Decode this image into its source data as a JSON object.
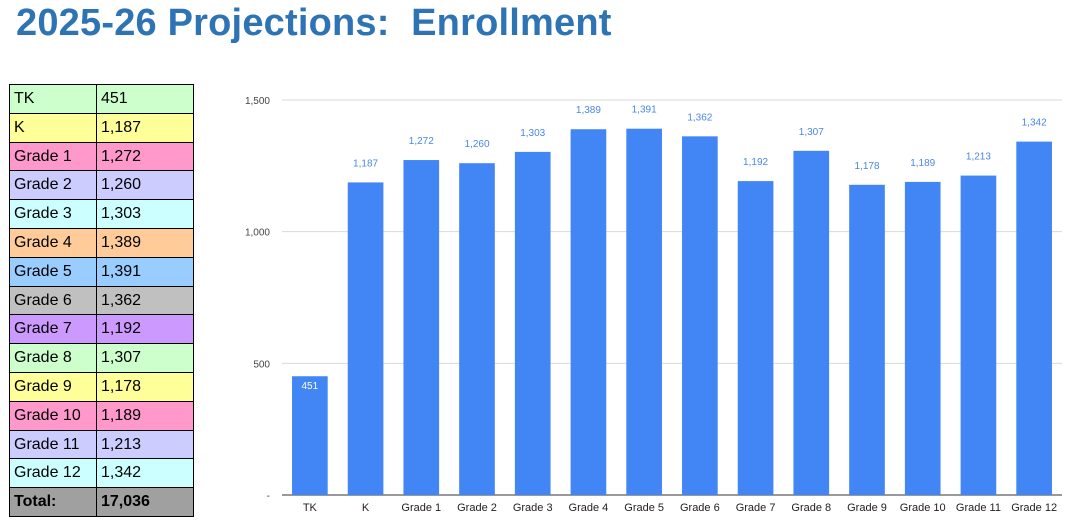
{
  "title": "2025-26 Projections:  Enrollment",
  "table": {
    "rows": [
      {
        "label": "TK",
        "value": "451",
        "color": "#ccffcc"
      },
      {
        "label": "K",
        "value": "1,187",
        "color": "#ffff99"
      },
      {
        "label": "Grade 1",
        "value": "1,272",
        "color": "#ff99cc"
      },
      {
        "label": "Grade 2",
        "value": "1,260",
        "color": "#ccccff"
      },
      {
        "label": "Grade 3",
        "value": "1,303",
        "color": "#ccffff"
      },
      {
        "label": "Grade 4",
        "value": "1,389",
        "color": "#ffcc99"
      },
      {
        "label": "Grade 5",
        "value": "1,391",
        "color": "#99ccff"
      },
      {
        "label": "Grade 6",
        "value": "1,362",
        "color": "#c0c0c0"
      },
      {
        "label": "Grade 7",
        "value": "1,192",
        "color": "#cc99ff"
      },
      {
        "label": "Grade 8",
        "value": "1,307",
        "color": "#ccffcc"
      },
      {
        "label": "Grade 9",
        "value": "1,178",
        "color": "#ffff99"
      },
      {
        "label": "Grade 10",
        "value": "1,189",
        "color": "#ff99cc"
      },
      {
        "label": "Grade 11",
        "value": "1,213",
        "color": "#ccccff"
      },
      {
        "label": "Grade 12",
        "value": "1,342",
        "color": "#ccffff"
      }
    ],
    "total_label": "Total:",
    "total_value": "17,036"
  },
  "chart_data": {
    "type": "bar",
    "categories": [
      "TK",
      "K",
      "Grade 1",
      "Grade 2",
      "Grade 3",
      "Grade 4",
      "Grade 5",
      "Grade 6",
      "Grade 7",
      "Grade 8",
      "Grade 9",
      "Grade 10",
      "Grade 11",
      "Grade 12"
    ],
    "values": [
      451,
      1187,
      1272,
      1260,
      1303,
      1389,
      1391,
      1362,
      1192,
      1307,
      1178,
      1189,
      1213,
      1342
    ],
    "data_labels": [
      "451",
      "1,187",
      "1,272",
      "1,260",
      "1,303",
      "1,389",
      "1,391",
      "1,362",
      "1,192",
      "1,307",
      "1,178",
      "1,189",
      "1,213",
      "1,342"
    ],
    "y_ticks": [
      {
        "value": 0,
        "label": "-"
      },
      {
        "value": 500,
        "label": "500"
      },
      {
        "value": 1000,
        "label": "1,000"
      },
      {
        "value": 1500,
        "label": "1,500"
      }
    ],
    "ylim": [
      0,
      1500
    ],
    "grid": true,
    "bar_color": "#4285f4",
    "label_color": "#4a86e8"
  }
}
